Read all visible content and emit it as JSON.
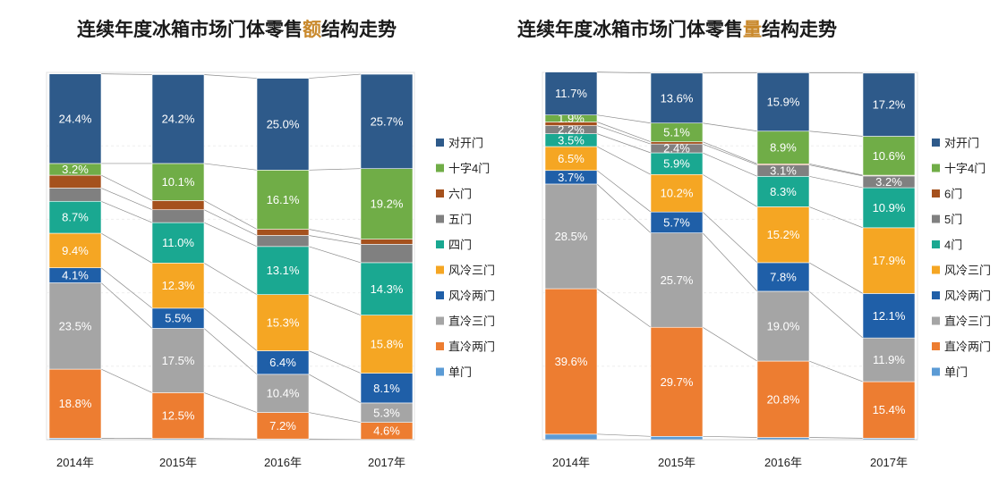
{
  "titles": {
    "left": {
      "pre": "连续年度冰箱市场门体零售",
      "hl": "额",
      "post": "结构走势"
    },
    "right": {
      "pre": "连续年度冰箱市场门体零售",
      "hl": "量",
      "post": "结构走势"
    }
  },
  "chart_data": [
    {
      "type": "bar",
      "stacked": true,
      "title": "连续年度冰箱市场门体零售额结构走势",
      "categories": [
        "2014年",
        "2015年",
        "2016年",
        "2017年"
      ],
      "ylim": [
        0,
        100
      ],
      "unit": "%",
      "series": [
        {
          "name": "单门",
          "color": "#5b9bd5",
          "values": [
            0.4,
            0.3,
            0.2,
            0.1
          ],
          "labels": [
            "",
            "",
            "",
            ""
          ]
        },
        {
          "name": "直冷两门",
          "color": "#ed7d31",
          "values": [
            18.8,
            12.5,
            7.2,
            4.6
          ],
          "labels": [
            "18.8%",
            "12.5%",
            "7.2%",
            "4.6%"
          ]
        },
        {
          "name": "直冷三门",
          "color": "#a5a5a5",
          "values": [
            23.5,
            17.5,
            10.4,
            5.3
          ],
          "labels": [
            "23.5%",
            "17.5%",
            "10.4%",
            "5.3%"
          ]
        },
        {
          "name": "风冷两门",
          "color": "#1f5fa8",
          "values": [
            4.1,
            5.5,
            6.4,
            8.1
          ],
          "labels": [
            "4.1%",
            "5.5%",
            "6.4%",
            "8.1%"
          ]
        },
        {
          "name": "风冷三门",
          "color": "#f5a623",
          "values": [
            9.4,
            12.3,
            15.3,
            15.8
          ],
          "labels": [
            "9.4%",
            "12.3%",
            "15.3%",
            "15.8%"
          ]
        },
        {
          "name": "四门",
          "color": "#1aa891",
          "values": [
            8.7,
            11.0,
            13.1,
            14.3
          ],
          "labels": [
            "8.7%",
            "11.0%",
            "13.1%",
            "14.3%"
          ]
        },
        {
          "name": "五门",
          "color": "#808080",
          "values": [
            3.6,
            3.5,
            3.0,
            5.0
          ],
          "labels": [
            "",
            "",
            "",
            ""
          ]
        },
        {
          "name": "六门",
          "color": "#a5511d",
          "values": [
            3.5,
            2.5,
            1.7,
            1.4
          ],
          "labels": [
            "",
            "",
            "",
            ""
          ]
        },
        {
          "name": "十字4门",
          "color": "#70ad47",
          "values": [
            3.2,
            10.1,
            16.1,
            19.2
          ],
          "labels": [
            "3.2%",
            "10.1%",
            "16.1%",
            "19.2%"
          ]
        },
        {
          "name": "对开门",
          "color": "#2e5a8a",
          "values": [
            24.4,
            24.2,
            25.0,
            25.7
          ],
          "labels": [
            "24.4%",
            "24.2%",
            "25.0%",
            "25.7%"
          ]
        }
      ]
    },
    {
      "type": "bar",
      "stacked": true,
      "title": "连续年度冰箱市场门体零售量结构走势",
      "categories": [
        "2014年",
        "2015年",
        "2016年",
        "2017年"
      ],
      "ylim": [
        0,
        100
      ],
      "unit": "%",
      "series": [
        {
          "name": "单门",
          "color": "#5b9bd5",
          "values": [
            1.5,
            0.9,
            0.6,
            0.4
          ],
          "labels": [
            "",
            "",
            "",
            ""
          ]
        },
        {
          "name": "直冷两门",
          "color": "#ed7d31",
          "values": [
            39.6,
            29.7,
            20.8,
            15.4
          ],
          "labels": [
            "39.6%",
            "29.7%",
            "20.8%",
            "15.4%"
          ]
        },
        {
          "name": "直冷三门",
          "color": "#a5a5a5",
          "values": [
            28.5,
            25.7,
            19.0,
            11.9
          ],
          "labels": [
            "28.5%",
            "25.7%",
            "19.0%",
            "11.9%"
          ]
        },
        {
          "name": "风冷两门",
          "color": "#1f5fa8",
          "values": [
            3.7,
            5.7,
            7.8,
            12.1
          ],
          "labels": [
            "3.7%",
            "5.7%",
            "7.8%",
            "12.1%"
          ]
        },
        {
          "name": "风冷三门",
          "color": "#f5a623",
          "values": [
            6.5,
            10.2,
            15.2,
            17.9
          ],
          "labels": [
            "6.5%",
            "10.2%",
            "15.2%",
            "17.9%"
          ]
        },
        {
          "name": "4门",
          "color": "#1aa891",
          "values": [
            3.5,
            5.9,
            8.3,
            10.9
          ],
          "labels": [
            "3.5%",
            "5.9%",
            "8.3%",
            "10.9%"
          ]
        },
        {
          "name": "5门",
          "color": "#808080",
          "values": [
            2.2,
            2.4,
            3.1,
            3.2
          ],
          "labels": [
            "2.2%",
            "2.4%",
            "3.1%",
            "3.2%"
          ]
        },
        {
          "name": "6门",
          "color": "#a5511d",
          "values": [
            1.0,
            0.6,
            0.3,
            0.2
          ],
          "labels": [
            "",
            "",
            "",
            ""
          ]
        },
        {
          "name": "十字4门",
          "color": "#70ad47",
          "values": [
            1.9,
            5.1,
            8.9,
            10.6
          ],
          "labels": [
            "1.9%",
            "5.1%",
            "8.9%",
            "10.6%"
          ]
        },
        {
          "name": "对开门",
          "color": "#2e5a8a",
          "values": [
            11.7,
            13.6,
            15.9,
            17.2
          ],
          "labels": [
            "11.7%",
            "13.6%",
            "15.9%",
            "17.2%"
          ]
        }
      ]
    }
  ]
}
